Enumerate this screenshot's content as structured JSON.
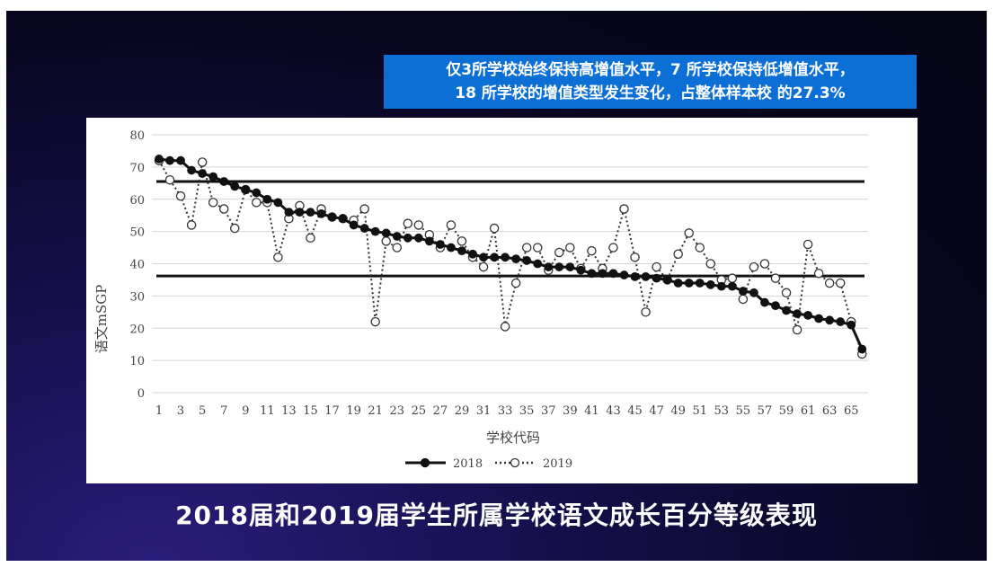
{
  "banner": {
    "line1": "仅3所学校始终保持高增值水平，7 所学校保持低增值水平，",
    "line2": "18 所学校的增值类型发生变化，占整体样本校  的27.3%"
  },
  "bottom_title": "2018届和2019届学生所属学校语文成长百分等级表现",
  "chart_data": {
    "type": "line",
    "xlabel": "学校代码",
    "ylabel": "语文mSGP",
    "ylim": [
      0,
      80
    ],
    "yticks": [
      0,
      10,
      20,
      30,
      40,
      50,
      60,
      70,
      80
    ],
    "xticks": [
      1,
      3,
      5,
      7,
      9,
      11,
      13,
      15,
      17,
      19,
      21,
      23,
      25,
      27,
      29,
      31,
      33,
      35,
      37,
      39,
      41,
      43,
      45,
      47,
      49,
      51,
      53,
      55,
      57,
      59,
      61,
      63,
      65
    ],
    "grid": true,
    "legend_position": "bottom",
    "reference_lines": [
      65.5,
      36.2
    ],
    "x": [
      1,
      2,
      3,
      4,
      5,
      6,
      7,
      8,
      9,
      10,
      11,
      12,
      13,
      14,
      15,
      16,
      17,
      18,
      19,
      20,
      21,
      22,
      23,
      24,
      25,
      26,
      27,
      28,
      29,
      30,
      31,
      32,
      33,
      34,
      35,
      36,
      37,
      38,
      39,
      40,
      41,
      42,
      43,
      44,
      45,
      46,
      47,
      48,
      49,
      50,
      51,
      52,
      53,
      54,
      55,
      56,
      57,
      58,
      59,
      60,
      61,
      62,
      63,
      64,
      65,
      66
    ],
    "series": [
      {
        "name": "2018",
        "style": "solid-filled",
        "color": "#111111",
        "values": [
          72.5,
          72,
          72,
          69,
          68,
          67,
          65.5,
          64,
          63,
          62,
          60,
          59,
          56,
          56,
          56,
          55.5,
          54.5,
          54,
          52,
          51,
          50,
          49.5,
          48.5,
          48,
          48,
          47,
          46,
          45,
          44,
          43,
          42,
          42,
          42,
          41.5,
          41,
          40,
          39,
          39,
          39,
          38,
          37,
          37,
          37,
          36.5,
          36,
          36,
          35.5,
          35,
          34,
          34,
          34,
          33.5,
          33,
          33,
          31.5,
          31,
          28,
          27,
          25.5,
          24.5,
          24,
          23,
          22.5,
          22,
          21,
          13.5
        ]
      },
      {
        "name": "2019",
        "style": "dotted-open",
        "color": "#333333",
        "values": [
          72,
          66,
          61,
          52,
          71.5,
          59,
          57,
          51,
          63,
          59,
          59,
          42,
          54,
          58,
          48,
          57,
          54.5,
          54,
          53.5,
          57,
          22,
          47,
          45,
          52.5,
          52,
          49,
          45,
          52,
          47,
          42,
          39,
          51,
          20.5,
          34,
          45,
          45,
          38,
          43.5,
          45,
          38.5,
          44,
          38.5,
          45,
          57,
          42,
          25,
          39,
          35,
          43,
          49.5,
          45,
          40,
          35,
          35.5,
          29,
          39,
          40,
          35.5,
          31,
          19.5,
          46,
          37,
          34,
          34,
          22,
          12
        ]
      }
    ]
  }
}
